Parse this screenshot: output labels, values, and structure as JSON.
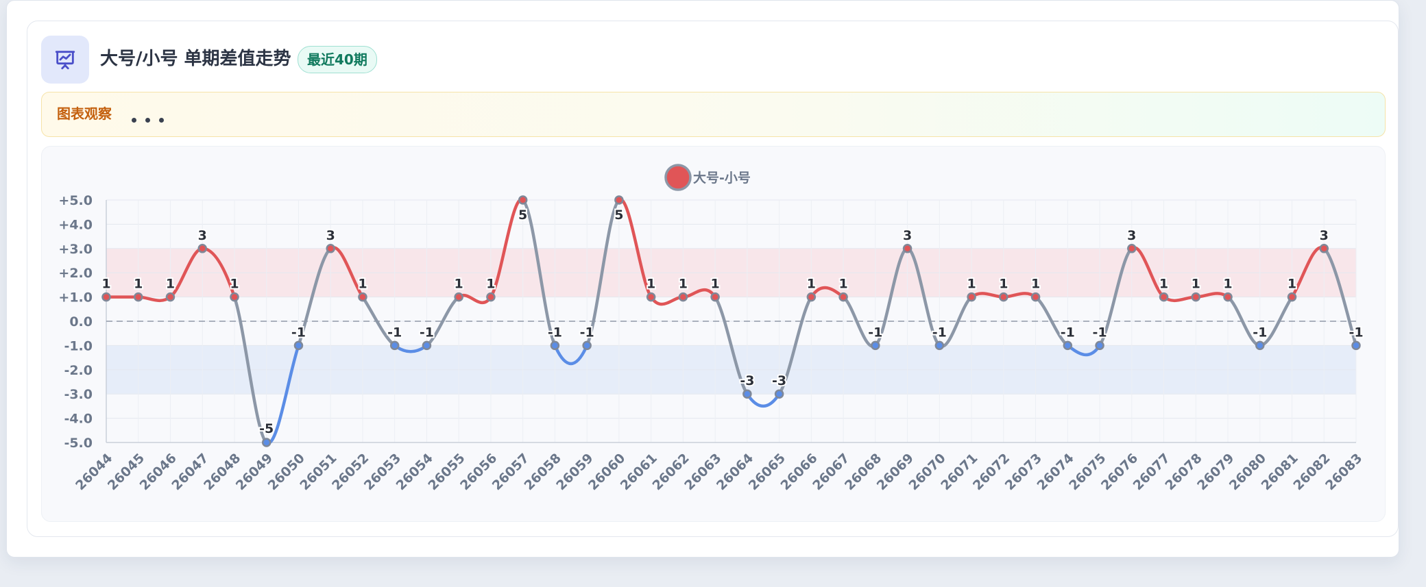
{
  "header": {
    "title": "大号/小号 单期差值走势",
    "badge": "最近40期",
    "icon": "presentation-chart-icon"
  },
  "observation": {
    "label": "图表观察"
  },
  "colors": {
    "positive": "#e05557",
    "negative": "#5b8de6",
    "neutral": "#8c97a7",
    "positive_band": "#f8e6ea",
    "negative_band": "#e6edf9"
  },
  "chart_data": {
    "type": "line",
    "smooth": true,
    "categories": [
      "26044",
      "26045",
      "26046",
      "26047",
      "26048",
      "26049",
      "26050",
      "26051",
      "26052",
      "26053",
      "26054",
      "26055",
      "26056",
      "26057",
      "26058",
      "26059",
      "26060",
      "26061",
      "26062",
      "26063",
      "26064",
      "26065",
      "26066",
      "26067",
      "26068",
      "26069",
      "26070",
      "26071",
      "26072",
      "26073",
      "26074",
      "26075",
      "26076",
      "26077",
      "26078",
      "26079",
      "26080",
      "26081",
      "26082",
      "26083"
    ],
    "series": [
      {
        "name": "大号-小号",
        "values": [
          1,
          1,
          1,
          3,
          1,
          -5,
          -1,
          3,
          1,
          -1,
          -1,
          1,
          1,
          5,
          -1,
          -1,
          5,
          1,
          1,
          1,
          -3,
          -3,
          1,
          1,
          -1,
          3,
          -1,
          1,
          1,
          1,
          -1,
          -1,
          3,
          1,
          1,
          1,
          -1,
          1,
          3,
          -1
        ]
      }
    ],
    "ylim": [
      -5,
      5
    ],
    "yticks": [
      "+5.0",
      "+4.0",
      "+3.0",
      "+2.0",
      "+1.0",
      "0.0",
      "-1.0",
      "-2.0",
      "-3.0",
      "-4.0",
      "-5.0"
    ],
    "bands": [
      {
        "from": 1,
        "to": 3,
        "color": "positive_band"
      },
      {
        "from": -3,
        "to": -1,
        "color": "negative_band"
      }
    ],
    "zero_line": "dashed",
    "grid": true,
    "legend": "top-center",
    "xlabel": "",
    "ylabel": ""
  }
}
